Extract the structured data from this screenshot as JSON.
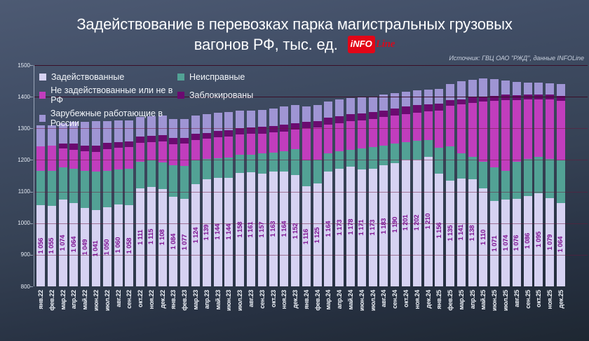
{
  "title": {
    "line1": "Задействование в перевозках парка магистральных грузовых",
    "line2": "вагонов РФ, тыс. ед."
  },
  "logo": {
    "box_text": "iNFO",
    "script_text": "Line",
    "red": "#e30617"
  },
  "source": "Источник: ГВЦ ОАО \"РЖД\", данные INFOLine",
  "chart_data": {
    "type": "bar",
    "stacked": true,
    "title": "Задействование в перевозках парка магистральных грузовых вагонов РФ, тыс. ед.",
    "ylim": [
      800,
      1500
    ],
    "yticks": [
      800,
      900,
      1000,
      1100,
      1200,
      1300,
      1400,
      1500
    ],
    "grid": true,
    "legend_position": "top-left",
    "bar_label_series": "Задействованные",
    "categories": [
      "янв.22",
      "фев.22",
      "мар.22",
      "апр.22",
      "май.22",
      "июн.22",
      "июл.22",
      "авг.22",
      "сен.22",
      "окт.22",
      "ноя.22",
      "дек.22",
      "янв.23",
      "фев.23",
      "мар.23",
      "апр.23",
      "май.23",
      "июн.23",
      "июл.23",
      "авг.23",
      "сен.23",
      "окт.23",
      "ноя.23",
      "дек.23",
      "янв.24",
      "фев.24",
      "мар.24",
      "апр.24",
      "май.24",
      "июн.24",
      "июл.24",
      "авг.24",
      "сен.24",
      "окт.24",
      "ноя.24",
      "дек.24",
      "янв.25",
      "фев.25",
      "мар.25",
      "апр.25",
      "май.25",
      "июн.25",
      "июл.25",
      "авг.25",
      "сен.25",
      "окт.25",
      "ноя.25",
      "дек.25"
    ],
    "series": [
      {
        "name": "Задействованные",
        "color": "#d6d2f2",
        "values": [
          1056,
          1055,
          1074,
          1064,
          1049,
          1041,
          1050,
          1060,
          1058,
          1111,
          1115,
          1108,
          1084,
          1077,
          1124,
          1139,
          1144,
          1144,
          1158,
          1161,
          1157,
          1163,
          1164,
          1152,
          1116,
          1125,
          1164,
          1173,
          1178,
          1171,
          1173,
          1183,
          1190,
          1201,
          1202,
          1210,
          1156,
          1135,
          1141,
          1138,
          1110,
          1071,
          1074,
          1076,
          1086,
          1095,
          1079,
          1064
        ]
      },
      {
        "name": "Неисправные",
        "color": "#52a295",
        "values": [
          110,
          111,
          102,
          108,
          116,
          122,
          115,
          109,
          114,
          83,
          83,
          84,
          99,
          103,
          74,
          64,
          61,
          63,
          58,
          56,
          63,
          60,
          63,
          82,
          82,
          76,
          56,
          54,
          54,
          66,
          67,
          63,
          62,
          56,
          58,
          54,
          82,
          107,
          79,
          71,
          84,
          105,
          91,
          118,
          117,
          114,
          124,
          134
        ]
      },
      {
        "name": "Не задействованные или не в РФ",
        "color": "#c13dbd",
        "values": [
          77,
          80,
          60,
          60,
          62,
          62,
          70,
          69,
          68,
          60,
          59,
          66,
          66,
          72,
          66,
          64,
          67,
          67,
          65,
          65,
          63,
          64,
          63,
          62,
          103,
          101,
          91,
          90,
          91,
          89,
          90,
          89,
          89,
          89,
          89,
          89,
          119,
          130,
          156,
          172,
          191,
          211,
          225,
          196,
          188,
          183,
          188,
          190
        ]
      },
      {
        "name": "Заблокированы",
        "color": "#6b0a70",
        "values": [
          0,
          0,
          16,
          19,
          19,
          20,
          19,
          19,
          18,
          21,
          19,
          20,
          20,
          18,
          18,
          19,
          19,
          19,
          20,
          20,
          21,
          20,
          21,
          21,
          19,
          20,
          23,
          22,
          21,
          22,
          22,
          22,
          22,
          23,
          24,
          24,
          22,
          18,
          16,
          17,
          16,
          16,
          17,
          15,
          16,
          16,
          16,
          15
        ]
      },
      {
        "name": "Зарубежные работающие в России",
        "color": "#9f95d4",
        "values": [
          66,
          64,
          65,
          70,
          75,
          78,
          69,
          68,
          68,
          62,
          63,
          63,
          61,
          59,
          59,
          58,
          59,
          59,
          55,
          55,
          55,
          56,
          58,
          57,
          50,
          52,
          51,
          52,
          52,
          50,
          49,
          50,
          48,
          47,
          47,
          46,
          46,
          50,
          58,
          55,
          56,
          52,
          44,
          42,
          38,
          36,
          35,
          37
        ]
      }
    ]
  }
}
